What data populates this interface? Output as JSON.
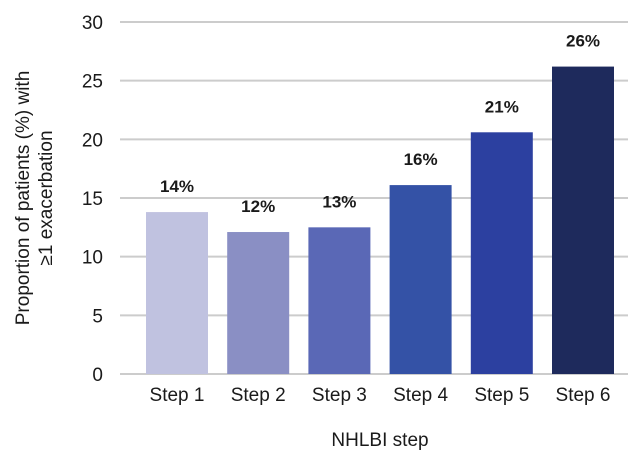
{
  "chart_data": {
    "type": "bar",
    "title": "",
    "xlabel": "NHLBI step",
    "ylabel_lines": [
      "Proportion of patients (%) with",
      "≥1 exacerbation"
    ],
    "categories": [
      "Step 1",
      "Step 2",
      "Step 3",
      "Step 4",
      "Step 5",
      "Step 6"
    ],
    "values": [
      13.8,
      12.1,
      12.5,
      16.1,
      20.6,
      26.2
    ],
    "data_labels": [
      "14%",
      "12%",
      "13%",
      "16%",
      "21%",
      "26%"
    ],
    "bar_colors": [
      "#c0c2e0",
      "#8a8fc4",
      "#5a68b6",
      "#3452a6",
      "#2c40a0",
      "#1e2a5c"
    ],
    "ylim": [
      0,
      30
    ],
    "yticks": [
      0,
      5,
      10,
      15,
      20,
      25,
      30
    ],
    "grid": true,
    "grid_color": "#cccccc",
    "legend": "none"
  }
}
